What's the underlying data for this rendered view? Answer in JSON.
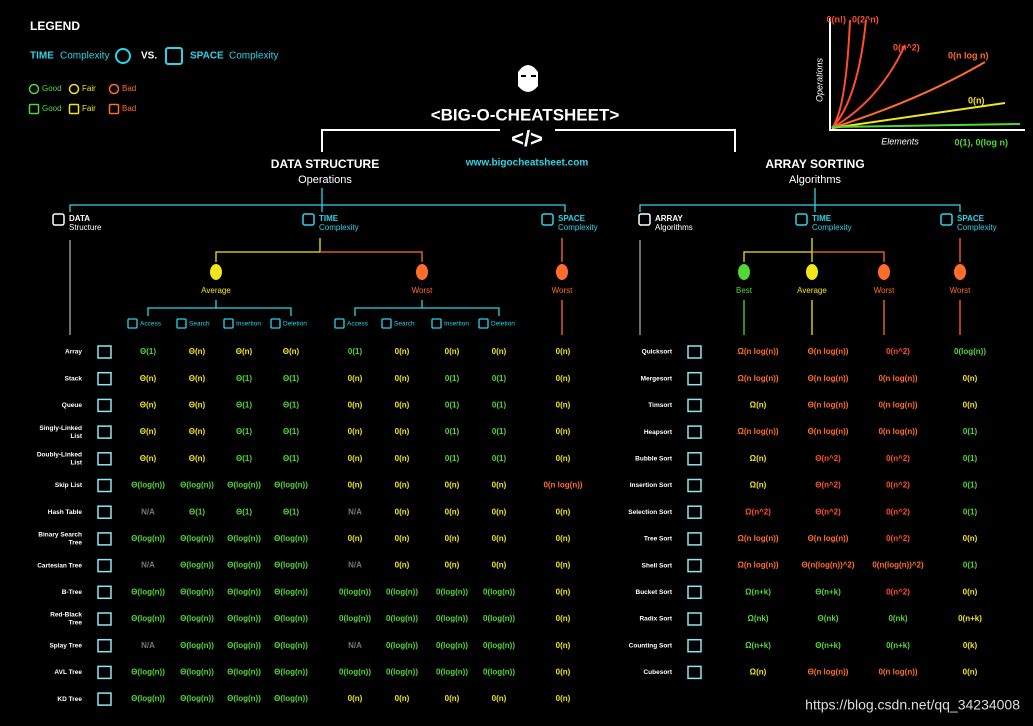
{
  "legend": {
    "title": "LEGEND",
    "time": "TIME",
    "time_sub": "Complexity",
    "vs": "VS.",
    "space": "SPACE",
    "space_sub": "Complexity",
    "time_items": [
      "Good",
      "Fair",
      "Bad"
    ],
    "space_items": [
      "Good",
      "Fair",
      "Bad"
    ],
    "item_colors": [
      "#53d63a",
      "#f3e51b",
      "#ff6d2a"
    ]
  },
  "header": {
    "title": "<BIG-O-CHEATSHEET>",
    "code": "</>",
    "url": "www.bigocheatsheet.com"
  },
  "graph": {
    "y_label": "Operations",
    "x_label": "Elements",
    "curves": [
      {
        "label": "0(n!)",
        "color": "#ff4f2a"
      },
      {
        "label": "0(2^n)",
        "color": "#ff4f2a"
      },
      {
        "label": "0(n^2)",
        "color": "#ff4f2a"
      },
      {
        "label": "0(n log n)",
        "color": "#ff6d2a"
      },
      {
        "label": "0(n)",
        "color": "#f3e51b"
      },
      {
        "label": "0(1), 0(log n)",
        "color": "#53d63a"
      }
    ]
  },
  "palette": {
    "g": "#53d63a",
    "y": "#f3e51b",
    "o": "#ff6d2a",
    "r": "#ff4f2a",
    "x": "#777777"
  },
  "data_structures": {
    "title": "DATA STRUCTURE",
    "subtitle": "Operations",
    "col_groups": [
      {
        "title": "DATA",
        "sub": "Structure"
      },
      {
        "title": "TIME",
        "sub": "Complexity"
      },
      {
        "title": "SPACE",
        "sub": "Complexity"
      }
    ],
    "cases": [
      "Average",
      "Worst",
      "Worst"
    ],
    "operations": [
      "Access",
      "Search",
      "Insertion",
      "Deletion",
      "Access",
      "Search",
      "Insertion",
      "Deletion"
    ],
    "rows": [
      {
        "name": [
          "Array"
        ],
        "cells": [
          "Θ(1)",
          "Θ(n)",
          "Θ(n)",
          "Θ(n)",
          "0(1)",
          "0(n)",
          "0(n)",
          "0(n)",
          "0(n)"
        ],
        "ratings": [
          "g",
          "y",
          "y",
          "y",
          "g",
          "y",
          "y",
          "y",
          "y"
        ]
      },
      {
        "name": [
          "Stack"
        ],
        "cells": [
          "Θ(n)",
          "Θ(n)",
          "Θ(1)",
          "Θ(1)",
          "0(n)",
          "0(n)",
          "0(1)",
          "0(1)",
          "0(n)"
        ],
        "ratings": [
          "y",
          "y",
          "g",
          "g",
          "y",
          "y",
          "g",
          "g",
          "y"
        ]
      },
      {
        "name": [
          "Queue"
        ],
        "cells": [
          "Θ(n)",
          "Θ(n)",
          "Θ(1)",
          "Θ(1)",
          "0(n)",
          "0(n)",
          "0(1)",
          "0(1)",
          "0(n)"
        ],
        "ratings": [
          "y",
          "y",
          "g",
          "g",
          "y",
          "y",
          "g",
          "g",
          "y"
        ]
      },
      {
        "name": [
          "Singly-Linked",
          "List"
        ],
        "cells": [
          "Θ(n)",
          "Θ(n)",
          "Θ(1)",
          "Θ(1)",
          "0(n)",
          "0(n)",
          "0(1)",
          "0(1)",
          "0(n)"
        ],
        "ratings": [
          "y",
          "y",
          "g",
          "g",
          "y",
          "y",
          "g",
          "g",
          "y"
        ]
      },
      {
        "name": [
          "Doubly-Linked",
          "List"
        ],
        "cells": [
          "Θ(n)",
          "Θ(n)",
          "Θ(1)",
          "Θ(1)",
          "0(n)",
          "0(n)",
          "0(1)",
          "0(1)",
          "0(n)"
        ],
        "ratings": [
          "y",
          "y",
          "g",
          "g",
          "y",
          "y",
          "g",
          "g",
          "y"
        ]
      },
      {
        "name": [
          "Skip List"
        ],
        "cells": [
          "Θ(log(n))",
          "Θ(log(n))",
          "Θ(log(n))",
          "Θ(log(n))",
          "0(n)",
          "0(n)",
          "0(n)",
          "0(n)",
          "0(n log(n))"
        ],
        "ratings": [
          "g",
          "g",
          "g",
          "g",
          "y",
          "y",
          "y",
          "y",
          "o"
        ]
      },
      {
        "name": [
          "Hash Table"
        ],
        "cells": [
          "N/A",
          "Θ(1)",
          "Θ(1)",
          "Θ(1)",
          "N/A",
          "0(n)",
          "0(n)",
          "0(n)",
          "0(n)"
        ],
        "ratings": [
          "x",
          "g",
          "g",
          "g",
          "x",
          "y",
          "y",
          "y",
          "y"
        ]
      },
      {
        "name": [
          "Binary Search",
          "Tree"
        ],
        "cells": [
          "Θ(log(n))",
          "Θ(log(n))",
          "Θ(log(n))",
          "Θ(log(n))",
          "0(n)",
          "0(n)",
          "0(n)",
          "0(n)",
          "0(n)"
        ],
        "ratings": [
          "g",
          "g",
          "g",
          "g",
          "y",
          "y",
          "y",
          "y",
          "y"
        ]
      },
      {
        "name": [
          "Cartesian Tree"
        ],
        "cells": [
          "N/A",
          "Θ(log(n))",
          "Θ(log(n))",
          "Θ(log(n))",
          "N/A",
          "0(n)",
          "0(n)",
          "0(n)",
          "0(n)"
        ],
        "ratings": [
          "x",
          "g",
          "g",
          "g",
          "x",
          "y",
          "y",
          "y",
          "y"
        ]
      },
      {
        "name": [
          "B-Tree"
        ],
        "cells": [
          "Θ(log(n))",
          "Θ(log(n))",
          "Θ(log(n))",
          "Θ(log(n))",
          "0(log(n))",
          "0(log(n))",
          "0(log(n))",
          "0(log(n))",
          "0(n)"
        ],
        "ratings": [
          "g",
          "g",
          "g",
          "g",
          "g",
          "g",
          "g",
          "g",
          "y"
        ]
      },
      {
        "name": [
          "Red-Black",
          "Tree"
        ],
        "cells": [
          "Θ(log(n))",
          "Θ(log(n))",
          "Θ(log(n))",
          "Θ(log(n))",
          "0(log(n))",
          "0(log(n))",
          "0(log(n))",
          "0(log(n))",
          "0(n)"
        ],
        "ratings": [
          "g",
          "g",
          "g",
          "g",
          "g",
          "g",
          "g",
          "g",
          "y"
        ]
      },
      {
        "name": [
          "Splay Tree"
        ],
        "cells": [
          "N/A",
          "Θ(log(n))",
          "Θ(log(n))",
          "Θ(log(n))",
          "N/A",
          "0(log(n))",
          "0(log(n))",
          "0(log(n))",
          "0(n)"
        ],
        "ratings": [
          "x",
          "g",
          "g",
          "g",
          "x",
          "g",
          "g",
          "g",
          "y"
        ]
      },
      {
        "name": [
          "AVL Tree"
        ],
        "cells": [
          "Θ(log(n))",
          "Θ(log(n))",
          "Θ(log(n))",
          "Θ(log(n))",
          "0(log(n))",
          "0(log(n))",
          "0(log(n))",
          "0(log(n))",
          "0(n)"
        ],
        "ratings": [
          "g",
          "g",
          "g",
          "g",
          "g",
          "g",
          "g",
          "g",
          "y"
        ]
      },
      {
        "name": [
          "KD Tree"
        ],
        "cells": [
          "Θ(log(n))",
          "Θ(log(n))",
          "Θ(log(n))",
          "Θ(log(n))",
          "0(n)",
          "0(n)",
          "0(n)",
          "0(n)",
          "0(n)"
        ],
        "ratings": [
          "g",
          "g",
          "g",
          "g",
          "y",
          "y",
          "y",
          "y",
          "y"
        ]
      }
    ]
  },
  "sorting": {
    "title": "ARRAY SORTING",
    "subtitle": "Algorithms",
    "col_groups": [
      {
        "title": "ARRAY",
        "sub": "Algorithms"
      },
      {
        "title": "TIME",
        "sub": "Complexity"
      },
      {
        "title": "SPACE",
        "sub": "Complexity"
      }
    ],
    "cases": [
      "Best",
      "Average",
      "Worst",
      "Worst"
    ],
    "rows": [
      {
        "name": "Quicksort",
        "cells": [
          "Ω(n log(n))",
          "Θ(n log(n))",
          "0(n^2)",
          "0(log(n))"
        ],
        "ratings": [
          "o",
          "o",
          "r",
          "g"
        ]
      },
      {
        "name": "Mergesort",
        "cells": [
          "Ω(n log(n))",
          "Θ(n log(n))",
          "0(n log(n))",
          "0(n)"
        ],
        "ratings": [
          "o",
          "o",
          "o",
          "y"
        ]
      },
      {
        "name": "Timsort",
        "cells": [
          "Ω(n)",
          "Θ(n log(n))",
          "0(n log(n))",
          "0(n)"
        ],
        "ratings": [
          "y",
          "o",
          "o",
          "y"
        ]
      },
      {
        "name": "Heapsort",
        "cells": [
          "Ω(n log(n))",
          "Θ(n log(n))",
          "0(n log(n))",
          "0(1)"
        ],
        "ratings": [
          "o",
          "o",
          "o",
          "g"
        ]
      },
      {
        "name": "Bubble Sort",
        "cells": [
          "Ω(n)",
          "Θ(n^2)",
          "0(n^2)",
          "0(1)"
        ],
        "ratings": [
          "y",
          "r",
          "r",
          "g"
        ]
      },
      {
        "name": "Insertion Sort",
        "cells": [
          "Ω(n)",
          "Θ(n^2)",
          "0(n^2)",
          "0(1)"
        ],
        "ratings": [
          "y",
          "r",
          "r",
          "g"
        ]
      },
      {
        "name": "Selection Sort",
        "cells": [
          "Ω(n^2)",
          "Θ(n^2)",
          "0(n^2)",
          "0(1)"
        ],
        "ratings": [
          "r",
          "r",
          "r",
          "g"
        ]
      },
      {
        "name": "Tree Sort",
        "cells": [
          "Ω(n log(n))",
          "Θ(n log(n))",
          "0(n^2)",
          "0(n)"
        ],
        "ratings": [
          "o",
          "o",
          "r",
          "y"
        ]
      },
      {
        "name": "Shell Sort",
        "cells": [
          "Ω(n log(n))",
          "Θ(n(log(n))^2)",
          "0(n(log(n))^2)",
          "0(1)"
        ],
        "ratings": [
          "o",
          "o",
          "o",
          "g"
        ]
      },
      {
        "name": "Bucket Sort",
        "cells": [
          "Ω(n+k)",
          "Θ(n+k)",
          "0(n^2)",
          "0(n)"
        ],
        "ratings": [
          "g",
          "g",
          "r",
          "y"
        ]
      },
      {
        "name": "Radix Sort",
        "cells": [
          "Ω(nk)",
          "Θ(nk)",
          "0(nk)",
          "0(n+k)"
        ],
        "ratings": [
          "g",
          "g",
          "g",
          "y"
        ]
      },
      {
        "name": "Counting Sort",
        "cells": [
          "Ω(n+k)",
          "Θ(n+k)",
          "0(n+k)",
          "0(k)"
        ],
        "ratings": [
          "g",
          "g",
          "g",
          "y"
        ]
      },
      {
        "name": "Cubesort",
        "cells": [
          "Ω(n)",
          "Θ(n log(n))",
          "0(n log(n))",
          "0(n)"
        ],
        "ratings": [
          "y",
          "o",
          "o",
          "y"
        ]
      }
    ]
  },
  "watermark": "https://blog.csdn.net/qq_34234008"
}
